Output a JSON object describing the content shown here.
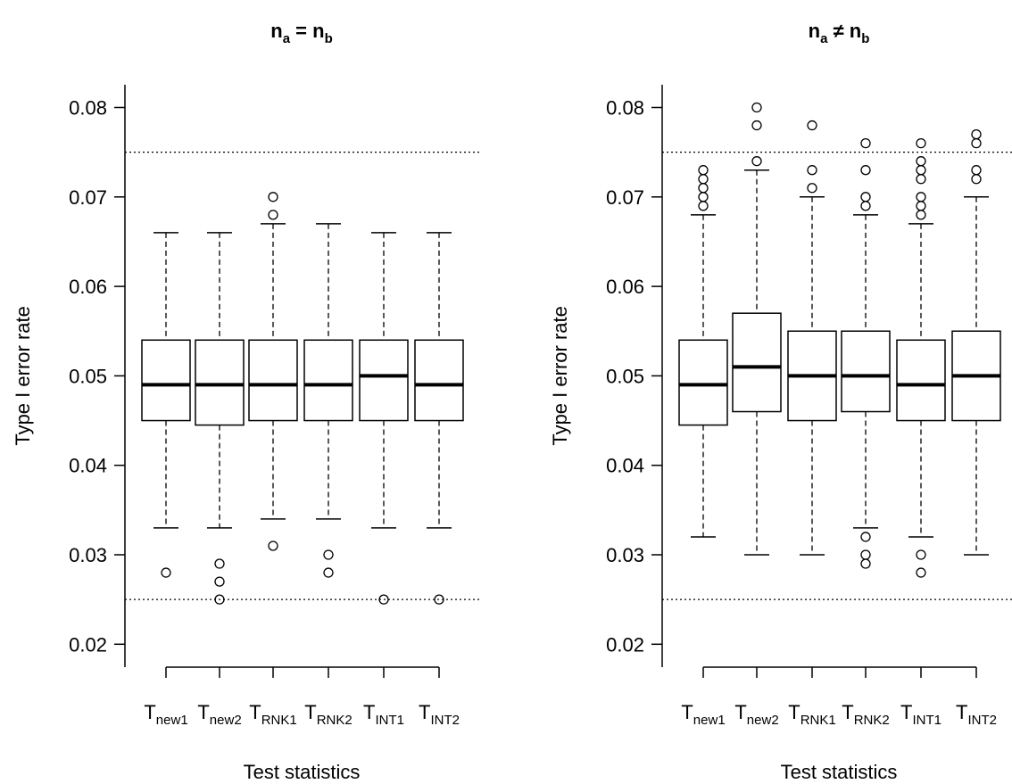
{
  "chart_data": [
    {
      "type": "boxplot",
      "title": "n_a = n_b",
      "title_main_left": "n",
      "title_sub_left": "a",
      "title_op": "=",
      "title_main_right": "n",
      "title_sub_right": "b",
      "xlabel": "Test statistics",
      "ylabel": "Type I error rate",
      "ylim": [
        0.0175,
        0.0825
      ],
      "yticks": [
        "0.02",
        "0.03",
        "0.04",
        "0.05",
        "0.06",
        "0.07",
        "0.08"
      ],
      "reference_lines": [
        0.025,
        0.075
      ],
      "categories": [
        {
          "main": "T",
          "sub": "new1"
        },
        {
          "main": "T",
          "sub": "new2"
        },
        {
          "main": "T",
          "sub": "RNK1"
        },
        {
          "main": "T",
          "sub": "RNK2"
        },
        {
          "main": "T",
          "sub": "INT1"
        },
        {
          "main": "T",
          "sub": "INT2"
        }
      ],
      "boxes": [
        {
          "whisker_low": 0.033,
          "q1": 0.045,
          "median": 0.049,
          "q3": 0.054,
          "whisker_high": 0.066,
          "outliers": [
            0.028
          ]
        },
        {
          "whisker_low": 0.033,
          "q1": 0.0445,
          "median": 0.049,
          "q3": 0.054,
          "whisker_high": 0.066,
          "outliers": [
            0.029,
            0.027,
            0.025
          ]
        },
        {
          "whisker_low": 0.034,
          "q1": 0.045,
          "median": 0.049,
          "q3": 0.054,
          "whisker_high": 0.067,
          "outliers": [
            0.068,
            0.07,
            0.031
          ]
        },
        {
          "whisker_low": 0.034,
          "q1": 0.045,
          "median": 0.049,
          "q3": 0.054,
          "whisker_high": 0.067,
          "outliers": [
            0.03,
            0.028
          ]
        },
        {
          "whisker_low": 0.033,
          "q1": 0.045,
          "median": 0.05,
          "q3": 0.054,
          "whisker_high": 0.066,
          "outliers": [
            0.025
          ]
        },
        {
          "whisker_low": 0.033,
          "q1": 0.045,
          "median": 0.049,
          "q3": 0.054,
          "whisker_high": 0.066,
          "outliers": [
            0.025
          ]
        }
      ]
    },
    {
      "type": "boxplot",
      "title": "n_a ≠ n_b",
      "title_main_left": "n",
      "title_sub_left": "a",
      "title_op": "≠",
      "title_main_right": "n",
      "title_sub_right": "b",
      "xlabel": "Test statistics",
      "ylabel": "Type I error rate",
      "ylim": [
        0.0175,
        0.0825
      ],
      "yticks": [
        "0.02",
        "0.03",
        "0.04",
        "0.05",
        "0.06",
        "0.07",
        "0.08"
      ],
      "reference_lines": [
        0.025,
        0.075
      ],
      "categories": [
        {
          "main": "T",
          "sub": "new1"
        },
        {
          "main": "T",
          "sub": "new2"
        },
        {
          "main": "T",
          "sub": "RNK1"
        },
        {
          "main": "T",
          "sub": "RNK2"
        },
        {
          "main": "T",
          "sub": "INT1"
        },
        {
          "main": "T",
          "sub": "INT2"
        }
      ],
      "boxes": [
        {
          "whisker_low": 0.032,
          "q1": 0.0445,
          "median": 0.049,
          "q3": 0.054,
          "whisker_high": 0.068,
          "outliers": [
            0.069,
            0.07,
            0.071,
            0.072,
            0.073
          ]
        },
        {
          "whisker_low": 0.03,
          "q1": 0.046,
          "median": 0.051,
          "q3": 0.057,
          "whisker_high": 0.073,
          "outliers": [
            0.074,
            0.078,
            0.08
          ]
        },
        {
          "whisker_low": 0.03,
          "q1": 0.045,
          "median": 0.05,
          "q3": 0.055,
          "whisker_high": 0.07,
          "outliers": [
            0.071,
            0.073,
            0.078
          ]
        },
        {
          "whisker_low": 0.033,
          "q1": 0.046,
          "median": 0.05,
          "q3": 0.055,
          "whisker_high": 0.068,
          "outliers": [
            0.069,
            0.07,
            0.073,
            0.076,
            0.032,
            0.03,
            0.029
          ]
        },
        {
          "whisker_low": 0.032,
          "q1": 0.045,
          "median": 0.049,
          "q3": 0.054,
          "whisker_high": 0.067,
          "outliers": [
            0.068,
            0.069,
            0.07,
            0.072,
            0.073,
            0.074,
            0.076,
            0.03,
            0.028
          ]
        },
        {
          "whisker_low": 0.03,
          "q1": 0.045,
          "median": 0.05,
          "q3": 0.055,
          "whisker_high": 0.07,
          "outliers": [
            0.072,
            0.073,
            0.076,
            0.077
          ]
        }
      ]
    }
  ]
}
